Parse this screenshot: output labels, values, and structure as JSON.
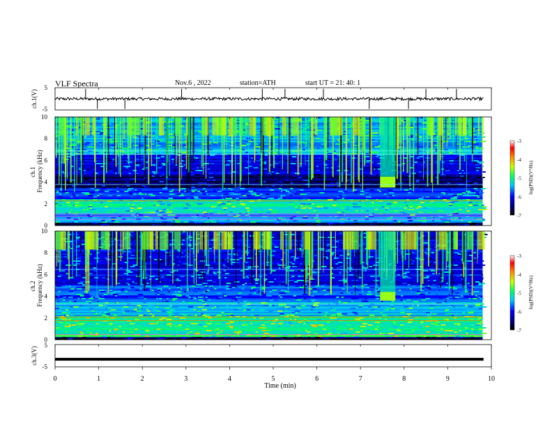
{
  "header": {
    "title": "VLF  Spectra",
    "date": "Nov.6  , 2022",
    "station": "station=ATH",
    "start": "start  UT  =   21: 40: 1"
  },
  "chart_data": [
    {
      "type": "line",
      "name": "ch1-voltage",
      "ylabel": "ch.1(V)",
      "ylim": [
        -5,
        5
      ],
      "yticks": [
        "5",
        "-5"
      ],
      "xlim": [
        0,
        10
      ],
      "baseline": 0,
      "spike_times": [
        0.7,
        0.97,
        1.6,
        2.9,
        4.75,
        5.27,
        6.15,
        7.2,
        8.1,
        8.5,
        9.2
      ]
    },
    {
      "type": "heatmap",
      "name": "ch1-spectrogram",
      "ylabel": "ch.1\nFrequency (kHz)",
      "ylim": [
        0,
        10
      ],
      "yticks": [
        "0",
        "2",
        "4",
        "6",
        "8",
        "10"
      ],
      "xlim": [
        0,
        9.8
      ],
      "colorbar": {
        "label": "log(PSD)(V²/Hz)",
        "range": [
          -7,
          -3
        ],
        "ticks": [
          "-3",
          "-4",
          "-5",
          "-6",
          "-7"
        ]
      },
      "burst_window_min": [
        7.45,
        7.8
      ],
      "burst_freq_khz": [
        3.5,
        4.5
      ]
    },
    {
      "type": "heatmap",
      "name": "ch2-spectrogram",
      "ylabel": "ch.2\nFrequency (kHz)",
      "ylim": [
        0,
        10
      ],
      "yticks": [
        "0",
        "2",
        "4",
        "6",
        "8",
        "10"
      ],
      "xlim": [
        0,
        9.8
      ],
      "colorbar": {
        "label": "log(PSD)(V²/Hz)",
        "range": [
          -7,
          -3
        ],
        "ticks": [
          "-3",
          "-4",
          "-5",
          "-6",
          "-7"
        ]
      },
      "burst_window_min": [
        7.45,
        7.8
      ],
      "burst_freq_khz": [
        3.6,
        4.4
      ]
    },
    {
      "type": "line",
      "name": "ch3-voltage",
      "ylabel": "ch.3(V)",
      "ylim": [
        -5,
        5
      ],
      "yticks": [
        "5",
        "-5"
      ],
      "xlim": [
        0,
        10
      ],
      "baseline": -1.6
    }
  ],
  "xaxis": {
    "label": "Time  (min)",
    "ticks": [
      "0",
      "1",
      "2",
      "3",
      "4",
      "5",
      "6",
      "7",
      "8",
      "9",
      "10"
    ]
  }
}
